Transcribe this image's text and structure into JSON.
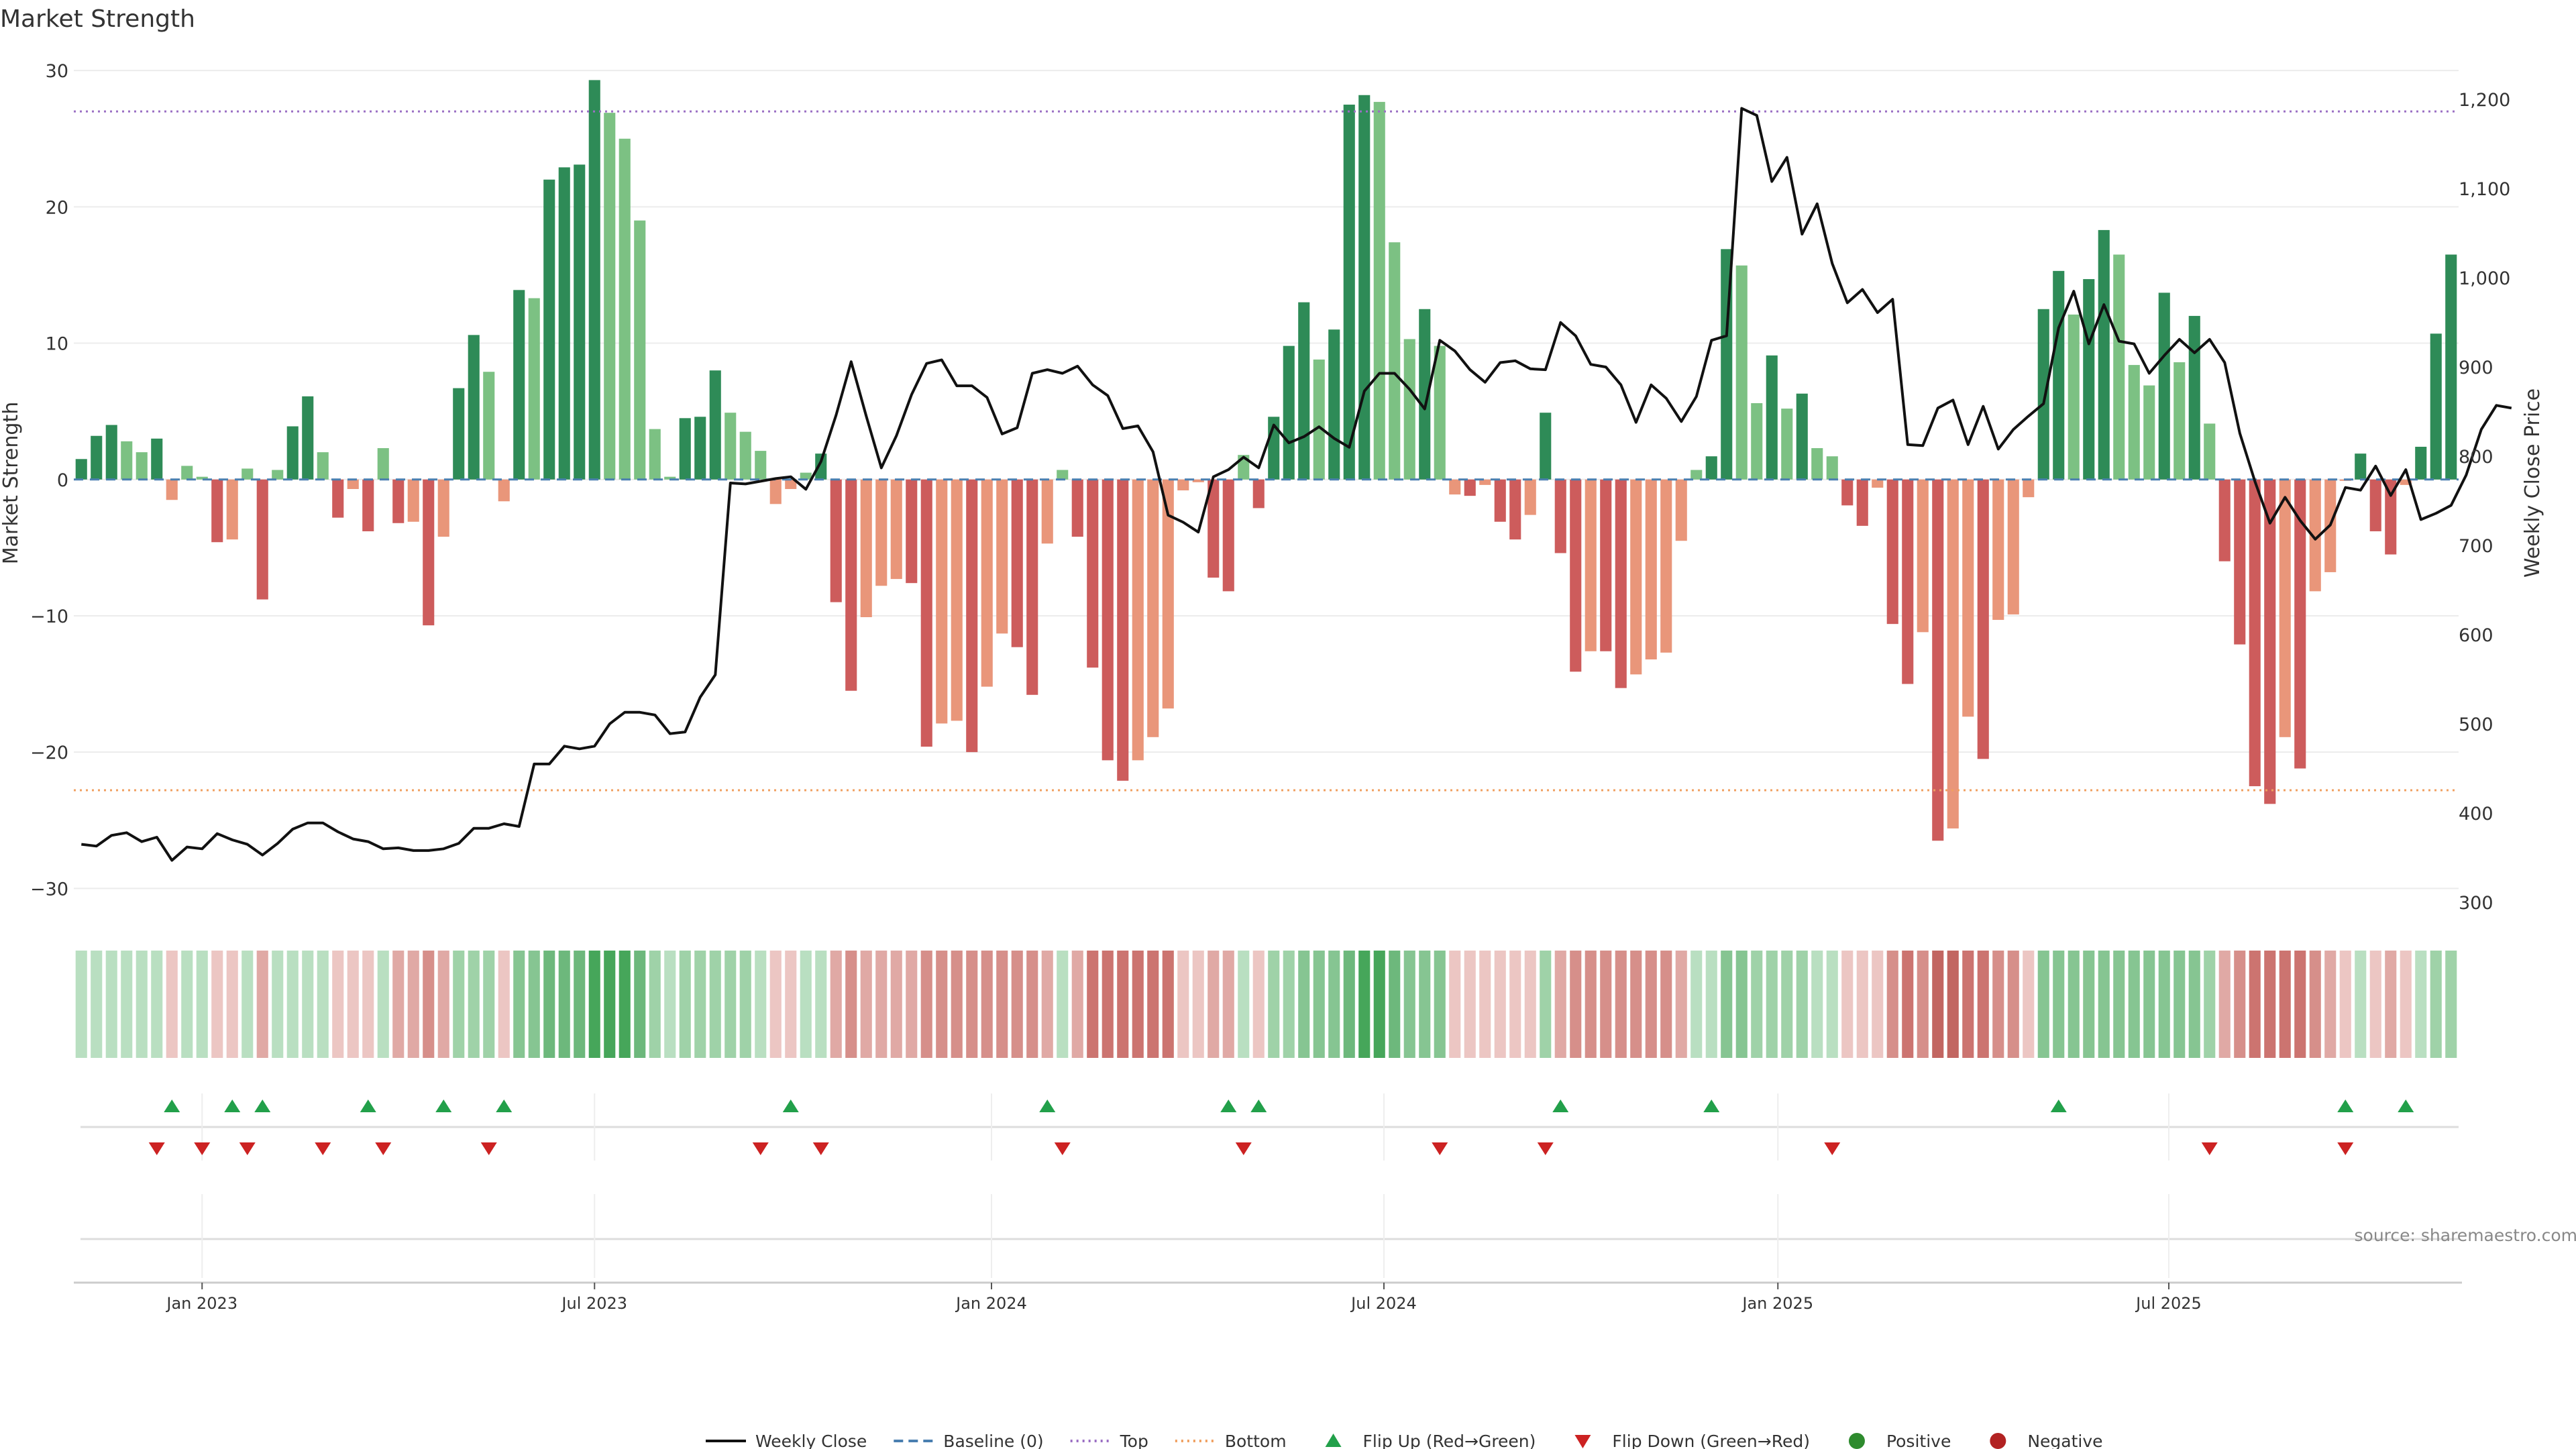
{
  "chart_data": {
    "type": "bar",
    "title": "Market Strength",
    "ylabel": "Market Strength",
    "y2label": "Weekly Close Price",
    "ylim": [
      -32,
      30.5
    ],
    "y2lim": [
      285,
      1240
    ],
    "yticks": [
      30,
      20,
      10,
      0,
      -10,
      -20,
      -30
    ],
    "yticks_label": [
      "30",
      "20",
      "10",
      "0",
      "−10",
      "−20",
      "−30"
    ],
    "y2ticks": [
      1200,
      1100,
      1000,
      900,
      800,
      700,
      600,
      500,
      400,
      300
    ],
    "y2ticks_label": [
      "1,200",
      "1,100",
      "1,000",
      "900",
      "800",
      "700",
      "600",
      "500",
      "400",
      "300"
    ],
    "x_date_ticks": [
      {
        "label": "Jan 2023",
        "week": 8
      },
      {
        "label": "Jul 2023",
        "week": 34
      },
      {
        "label": "Jan 2024",
        "week": 60.3
      },
      {
        "label": "Jul 2024",
        "week": 86.3
      },
      {
        "label": "Jan 2025",
        "week": 112.4
      },
      {
        "label": "Jul 2025",
        "week": 138.3
      }
    ],
    "top_line": 27,
    "bottom_line": -22.8,
    "source": "source: sharemaestro.com",
    "colors": {
      "green_dark": "#2e8b57",
      "green_light": "#7cc183",
      "red_dark": "#cd5c5c",
      "red_light": "#e9967a",
      "close": "#111111",
      "baseline": "#4a7fb0",
      "top": "#9b6fc4",
      "bottom": "#f0a060",
      "flip_up": "#22a04a",
      "flip_down": "#cc2222",
      "positive": "#2e8b2e",
      "negative": "#b22222"
    },
    "legend": [
      {
        "label": "Weekly Close",
        "kind": "line-solid",
        "color": "#111111"
      },
      {
        "label": "Baseline (0)",
        "kind": "line-dash",
        "color": "#4a7fb0"
      },
      {
        "label": "Top",
        "kind": "line-dot",
        "color": "#9b6fc4"
      },
      {
        "label": "Bottom",
        "kind": "line-dot",
        "color": "#f0a060"
      },
      {
        "label": "Flip Up (Red→Green)",
        "kind": "tri-up",
        "color": "#22a04a"
      },
      {
        "label": "Flip Down (Green→Red)",
        "kind": "tri-down",
        "color": "#cc2222"
      },
      {
        "label": "Positive",
        "kind": "dot",
        "color": "#2e8b2e"
      },
      {
        "label": "Negative",
        "kind": "dot",
        "color": "#b22222"
      }
    ],
    "strength": [
      1.5,
      3.2,
      4,
      2.8,
      2,
      3,
      -1.5,
      1,
      0.2,
      -4.6,
      -4.4,
      0.8,
      -8.8,
      0.7,
      3.9,
      6.1,
      2,
      -2.8,
      -0.7,
      -3.8,
      2.3,
      -3.2,
      -3.1,
      -10.7,
      -4.2,
      6.7,
      10.6,
      7.9,
      -1.6,
      13.9,
      13.3,
      22,
      22.9,
      23.1,
      29.3,
      26.9,
      25,
      19,
      3.7,
      0.2,
      4.5,
      4.6,
      8,
      4.9,
      3.5,
      2.1,
      -1.8,
      -0.7,
      0.5,
      1.9,
      -9,
      -15.5,
      -10.1,
      -7.8,
      -7.3,
      -7.6,
      -19.6,
      -17.9,
      -17.7,
      -20,
      -15.2,
      -11.3,
      -12.3,
      -15.8,
      -4.7,
      0.7,
      -4.2,
      -13.8,
      -20.6,
      -22.1,
      -20.6,
      -18.9,
      -16.8,
      -0.8,
      -0.2,
      -7.2,
      -8.2,
      1.8,
      -2.1,
      4.6,
      9.8,
      13,
      8.8,
      11,
      27.5,
      28.2,
      27.7,
      17.4,
      10.3,
      12.5,
      9.8,
      -1.1,
      -1.2,
      -0.4,
      -3.1,
      -4.4,
      -2.6,
      4.9,
      -5.4,
      -14.1,
      -12.6,
      -12.6,
      -15.3,
      -14.3,
      -13.2,
      -12.7,
      -4.5,
      0.7,
      1.7,
      16.9,
      15.7,
      5.6,
      9.1,
      5.2,
      6.3,
      2.3,
      1.7,
      -1.9,
      -3.4,
      -0.6,
      -10.6,
      -15,
      -11.2,
      -26.5,
      -25.6,
      -17.4,
      -20.5,
      -10.3,
      -9.9,
      -1.3,
      12.5,
      15.3,
      12.1,
      14.7,
      18.3,
      16.5,
      8.4,
      6.9,
      13.7,
      8.6,
      12,
      4.1,
      -6,
      -12.1,
      -22.5,
      -23.8,
      -18.9,
      -21.2,
      -8.2,
      -6.8,
      -0.1,
      1.9,
      -3.8,
      -5.5,
      -0.4,
      2.4,
      10.7,
      16.5
    ],
    "close": [
      365,
      363,
      375,
      378,
      368,
      373,
      347,
      362,
      360,
      377,
      370,
      365,
      353,
      366,
      382,
      389,
      389,
      379,
      371,
      368,
      360,
      361,
      358,
      358,
      360,
      366,
      383,
      383,
      388,
      385,
      455,
      455,
      475,
      472,
      475,
      500,
      513,
      513,
      510,
      489,
      491,
      530,
      555,
      770,
      769,
      772,
      775,
      777,
      763,
      794,
      846,
      906,
      845,
      787,
      823,
      869,
      904,
      908,
      879,
      879,
      866,
      825,
      832,
      893,
      897,
      893,
      901,
      880,
      868,
      831,
      834,
      805,
      734,
      726,
      715,
      777,
      785,
      799,
      787,
      835,
      815,
      822,
      833,
      820,
      810,
      873,
      893,
      893,
      875,
      853,
      930,
      918,
      897,
      883,
      905,
      907,
      898,
      897,
      950,
      935,
      903,
      900,
      880,
      838,
      880,
      865,
      839,
      867,
      930,
      935,
      1190,
      1182,
      1108,
      1135,
      1049,
      1083,
      1016,
      972,
      987,
      961,
      976,
      813,
      812,
      854,
      863,
      813,
      856,
      808,
      830,
      845,
      859,
      944,
      985,
      926,
      970,
      929,
      926,
      893,
      913,
      931,
      916,
      931,
      905,
      826,
      772,
      725,
      754,
      728,
      707,
      723,
      765,
      762,
      789,
      756,
      785,
      729,
      736,
      745,
      779,
      830,
      857,
      854
    ],
    "bands": [
      2,
      2,
      2,
      2,
      2,
      2,
      -2,
      2,
      2,
      -2,
      -2,
      2,
      -3,
      2,
      2,
      2,
      2,
      -2,
      -2,
      -2,
      2,
      -3,
      -3,
      -4,
      -3,
      3,
      3,
      3,
      -2,
      4,
      4,
      5,
      5,
      5,
      6,
      6,
      6,
      5,
      3,
      2,
      3,
      3,
      3,
      3,
      3,
      2,
      -2,
      -2,
      2,
      2,
      -3,
      -4,
      -3,
      -3,
      -3,
      -3,
      -4,
      -4,
      -4,
      -4,
      -4,
      -4,
      -4,
      -4,
      -3,
      2,
      -3,
      -5,
      -5,
      -5,
      -5,
      -5,
      -5,
      -2,
      -2,
      -3,
      -3,
      2,
      -2,
      3,
      3,
      4,
      4,
      4,
      5,
      6,
      6,
      5,
      4,
      4,
      4,
      -2,
      -2,
      -2,
      -2,
      -2,
      -2,
      3,
      -3,
      -4,
      -4,
      -4,
      -4,
      -4,
      -4,
      -4,
      -3,
      2,
      2,
      4,
      4,
      3,
      3,
      3,
      3,
      2,
      2,
      -2,
      -2,
      -2,
      -4,
      -5,
      -4,
      -6,
      -6,
      -5,
      -5,
      -4,
      -4,
      -2,
      4,
      4,
      4,
      4,
      4,
      4,
      4,
      4,
      4,
      4,
      4,
      3,
      -3,
      -4,
      -5,
      -5,
      -5,
      -5,
      -4,
      -3,
      -2,
      2,
      -2,
      -3,
      -2,
      2,
      3,
      3
    ],
    "flip_up": [
      6,
      10,
      12,
      19,
      24,
      28,
      47,
      64,
      76,
      78,
      98,
      108,
      131,
      150,
      154
    ],
    "flip_down": [
      5,
      8,
      11,
      16,
      20,
      27,
      45,
      49,
      65,
      77,
      90,
      97,
      116,
      141,
      150
    ]
  }
}
